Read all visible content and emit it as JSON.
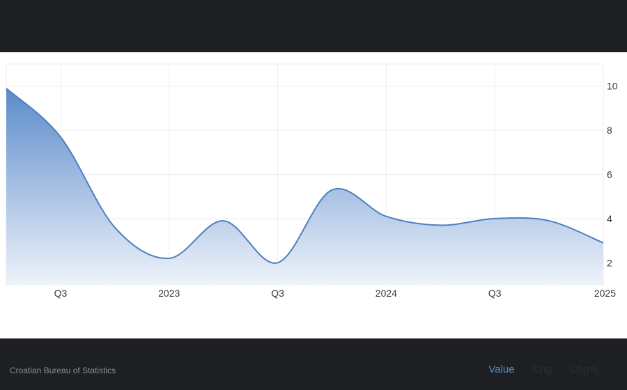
{
  "chart_data": {
    "type": "area",
    "x": [
      "2022-Q2",
      "2022-Q3",
      "2022-Q4",
      "2023-Q1",
      "2023-Q2",
      "2023-Q3",
      "2023-Q4",
      "2024-Q1",
      "2024-Q2",
      "2024-Q3",
      "2024-Q4",
      "2025-Q1"
    ],
    "values": [
      9.9,
      7.7,
      3.6,
      2.2,
      3.9,
      2.0,
      5.3,
      4.1,
      3.7,
      4.0,
      3.9,
      2.9
    ],
    "x_tick_labels": [
      {
        "label": "Q3",
        "x": "2022-Q3"
      },
      {
        "label": "2023",
        "x": "2023-Q1"
      },
      {
        "label": "Q3",
        "x": "2023-Q3"
      },
      {
        "label": "2024",
        "x": "2024-Q1"
      },
      {
        "label": "Q3",
        "x": "2024-Q3"
      },
      {
        "label": "2025",
        "x": "2025-Q1"
      }
    ],
    "y_ticks": [
      2,
      4,
      6,
      8,
      10
    ],
    "ylim": [
      1,
      11
    ],
    "y_axis_side": "right",
    "grid": true,
    "colors": {
      "line": "#4f7fbf",
      "fill_top": "#5b8bcb",
      "fill_bottom": "#eef3fa"
    }
  },
  "footer": {
    "source": "Croatian Bureau of Statistics",
    "tabs": [
      "Value",
      "Chg",
      "Chg%"
    ],
    "active_tab": "Value"
  }
}
